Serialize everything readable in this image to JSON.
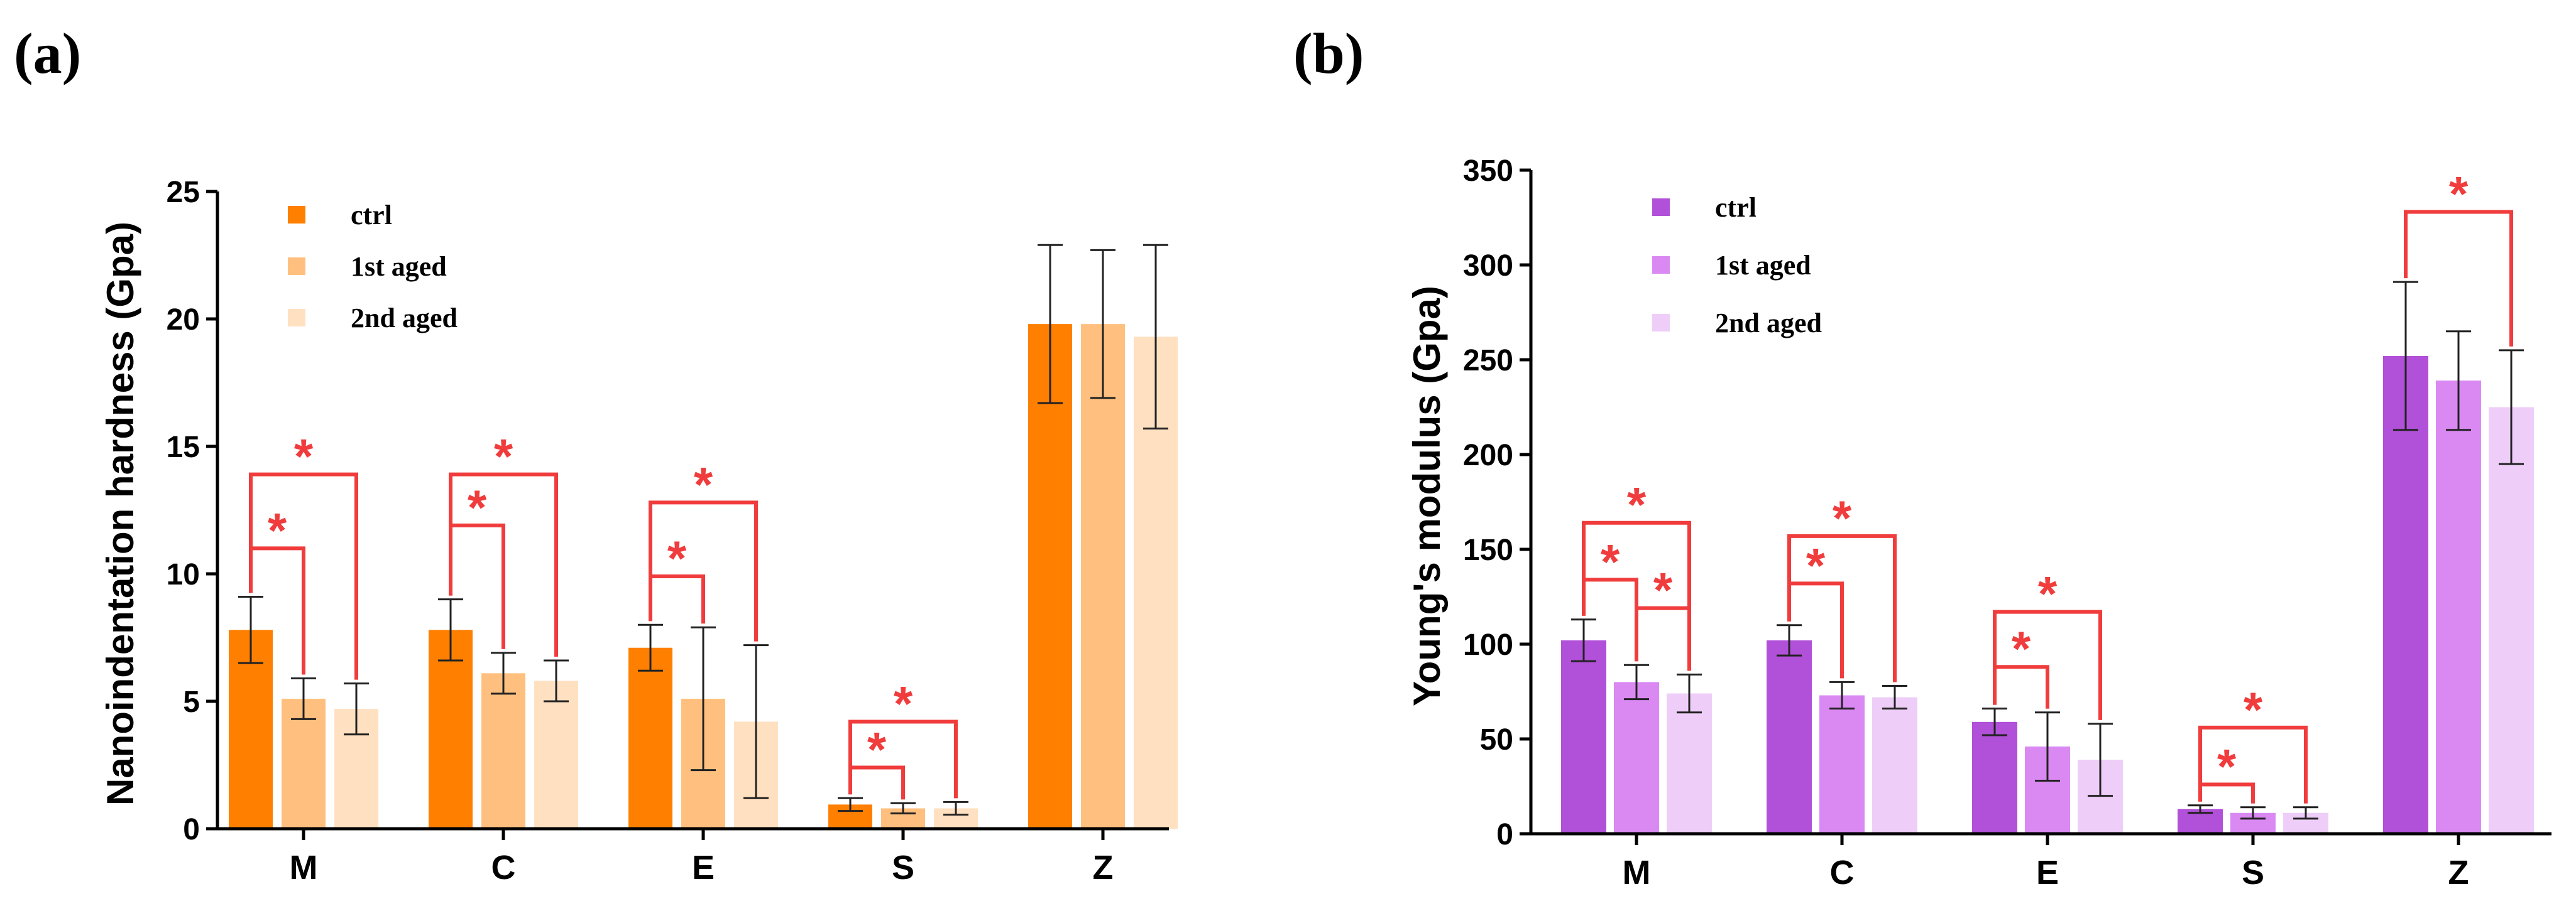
{
  "panels": [
    {
      "label": "(a)",
      "chart_data": {
        "type": "bar",
        "title": "",
        "xlabel": "",
        "ylabel": "Nanoindentation hardness (Gpa)",
        "categories": [
          "M",
          "C",
          "E",
          "S",
          "Z"
        ],
        "ylim": [
          0,
          25
        ],
        "yticks": [
          0,
          5,
          10,
          15,
          20,
          25
        ],
        "grid": false,
        "legend_position": "top-left",
        "series": [
          {
            "name": "ctrl",
            "color": "#FF7F00",
            "values": [
              7.8,
              7.8,
              7.1,
              0.95,
              19.8
            ],
            "errors": [
              1.3,
              1.2,
              0.9,
              0.25,
              3.1
            ]
          },
          {
            "name": "1st aged",
            "color": "#FFC07F",
            "values": [
              5.1,
              6.1,
              5.1,
              0.8,
              19.8
            ],
            "errors": [
              0.8,
              0.8,
              2.8,
              0.2,
              2.9
            ]
          },
          {
            "name": "2nd aged",
            "color": "#FFE0C0",
            "values": [
              4.7,
              5.8,
              4.2,
              0.8,
              19.3
            ],
            "errors": [
              1.0,
              0.8,
              3.0,
              0.25,
              3.6
            ]
          }
        ],
        "significance": [
          {
            "category": 0,
            "from_series": 0,
            "to_series": 1,
            "level": 11,
            "label": "*"
          },
          {
            "category": 0,
            "from_series": 0,
            "to_series": 2,
            "level": 13.9,
            "label": "*"
          },
          {
            "category": 1,
            "from_series": 0,
            "to_series": 1,
            "level": 11.9,
            "label": "*"
          },
          {
            "category": 1,
            "from_series": 0,
            "to_series": 2,
            "level": 13.9,
            "label": "*"
          },
          {
            "category": 2,
            "from_series": 0,
            "to_series": 1,
            "level": 9.9,
            "label": "*"
          },
          {
            "category": 2,
            "from_series": 0,
            "to_series": 2,
            "level": 12.8,
            "label": "*"
          },
          {
            "category": 3,
            "from_series": 0,
            "to_series": 1,
            "level": 2.4,
            "label": "*"
          },
          {
            "category": 3,
            "from_series": 0,
            "to_series": 2,
            "level": 4.2,
            "label": "*"
          }
        ]
      }
    },
    {
      "label": "(b)",
      "chart_data": {
        "type": "bar",
        "title": "",
        "xlabel": "",
        "ylabel": "Young's modulus (Gpa)",
        "categories": [
          "M",
          "C",
          "E",
          "S",
          "Z"
        ],
        "ylim": [
          0,
          350
        ],
        "yticks": [
          0,
          50,
          100,
          150,
          200,
          250,
          300,
          350
        ],
        "grid": false,
        "legend_position": "top-left",
        "series": [
          {
            "name": "ctrl",
            "color": "#B150D8",
            "values": [
              102,
              102,
              59,
              13,
              252
            ],
            "errors": [
              11,
              8,
              7,
              2,
              39
            ]
          },
          {
            "name": "1st aged",
            "color": "#DA89F3",
            "values": [
              80,
              73,
              46,
              11,
              239
            ],
            "errors": [
              9,
              7,
              18,
              3,
              26
            ]
          },
          {
            "name": "2nd aged",
            "color": "#EECEF8",
            "values": [
              74,
              72,
              39,
              11,
              225
            ],
            "errors": [
              10,
              6,
              19,
              3,
              30
            ]
          }
        ],
        "significance": [
          {
            "category": 0,
            "from_series": 0,
            "to_series": 1,
            "level": 134,
            "label": "*"
          },
          {
            "category": 0,
            "from_series": 0,
            "to_series": 2,
            "level": 164,
            "label": "*"
          },
          {
            "category": 0,
            "from_series": 1,
            "to_series": 2,
            "level": 119,
            "label": "*"
          },
          {
            "category": 1,
            "from_series": 0,
            "to_series": 1,
            "level": 132,
            "label": "*"
          },
          {
            "category": 1,
            "from_series": 0,
            "to_series": 2,
            "level": 157,
            "label": "*"
          },
          {
            "category": 2,
            "from_series": 0,
            "to_series": 1,
            "level": 88,
            "label": "*"
          },
          {
            "category": 2,
            "from_series": 0,
            "to_series": 2,
            "level": 117,
            "label": "*"
          },
          {
            "category": 3,
            "from_series": 0,
            "to_series": 1,
            "level": 26,
            "label": "*"
          },
          {
            "category": 3,
            "from_series": 0,
            "to_series": 2,
            "level": 56,
            "label": "*"
          },
          {
            "category": 4,
            "from_series": 0,
            "to_series": 2,
            "level": 328,
            "label": "*"
          }
        ]
      }
    }
  ],
  "significance_color": "#F03C3C"
}
